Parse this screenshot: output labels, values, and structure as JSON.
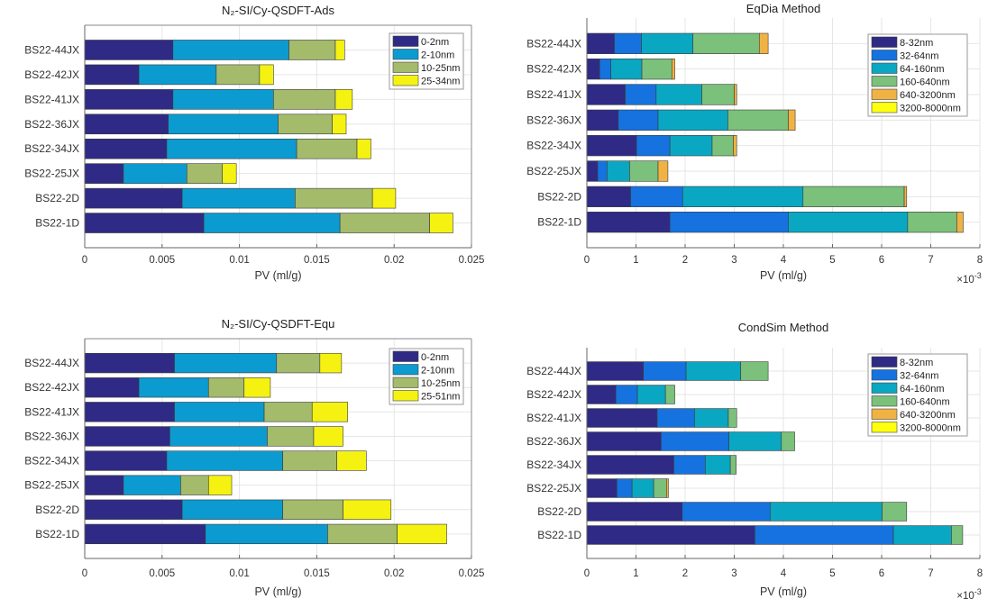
{
  "chart_data": [
    {
      "type": "bar",
      "orientation": "horizontal",
      "stacked": true,
      "title": "N₂-SI/Cy-QSDFT-Ads",
      "xlabel": "PV (ml/g)",
      "ylabel": "",
      "xlim": [
        0,
        0.025
      ],
      "xticks": [
        "0",
        "0.005",
        "0.01",
        "0.015",
        "0.02",
        "0.025"
      ],
      "xtick_values": [
        0,
        0.005,
        0.01,
        0.015,
        0.02,
        0.025
      ],
      "grid": true,
      "legend_position": "top-right",
      "categories": [
        "BS22-1D",
        "BS22-2D",
        "BS22-25JX",
        "BS22-34JX",
        "BS22-36JX",
        "BS22-41JX",
        "BS22-42JX",
        "BS22-44JX"
      ],
      "series": [
        {
          "name": "0-2nm",
          "color": "#2f2a85",
          "values": [
            0.0077,
            0.0063,
            0.0025,
            0.0053,
            0.0054,
            0.0057,
            0.0035,
            0.0057
          ]
        },
        {
          "name": "2-10nm",
          "color": "#0b9bd0",
          "values": [
            0.0088,
            0.0073,
            0.0041,
            0.0084,
            0.0071,
            0.0065,
            0.005,
            0.0075
          ]
        },
        {
          "name": "10-25nm",
          "color": "#a3bb6b",
          "values": [
            0.0058,
            0.005,
            0.0023,
            0.0039,
            0.0035,
            0.004,
            0.0028,
            0.003
          ]
        },
        {
          "name": "25-34nm",
          "color": "#f5f212",
          "values": [
            0.0015,
            0.0015,
            0.0009,
            0.0009,
            0.0009,
            0.0011,
            0.0009,
            0.0006
          ]
        }
      ]
    },
    {
      "type": "bar",
      "orientation": "horizontal",
      "stacked": true,
      "title": "EqDia Method",
      "xlabel": "PV (ml/g)",
      "ylabel": "",
      "xlim": [
        0,
        8
      ],
      "xticks": [
        "0",
        "1",
        "2",
        "3",
        "4",
        "5",
        "6",
        "7",
        "8"
      ],
      "xtick_values": [
        0,
        1,
        2,
        3,
        4,
        5,
        6,
        7,
        8
      ],
      "x_multiplier": {
        "base": "×10",
        "exp": "-3"
      },
      "grid": true,
      "legend_position": "top-right",
      "categories": [
        "BS22-1D",
        "BS22-2D",
        "BS22-25JX",
        "BS22-34JX",
        "BS22-36JX",
        "BS22-41JX",
        "BS22-42JX",
        "BS22-44JX"
      ],
      "series": [
        {
          "name": "8-32nm",
          "color": "#2f2a85",
          "values": [
            1.69,
            0.89,
            0.22,
            1.01,
            0.64,
            0.78,
            0.26,
            0.56
          ]
        },
        {
          "name": "32-64nm",
          "color": "#1572df",
          "values": [
            2.41,
            1.06,
            0.19,
            0.68,
            0.81,
            0.63,
            0.23,
            0.55
          ]
        },
        {
          "name": "64-160nm",
          "color": "#0aa7c2",
          "values": [
            2.43,
            2.45,
            0.46,
            0.86,
            1.42,
            0.93,
            0.63,
            1.05
          ]
        },
        {
          "name": "160-640nm",
          "color": "#7bc07b",
          "values": [
            1.0,
            2.06,
            0.58,
            0.43,
            1.23,
            0.66,
            0.61,
            1.35
          ]
        },
        {
          "name": "640-3200nm",
          "color": "#f0b243",
          "values": [
            0.13,
            0.05,
            0.2,
            0.07,
            0.14,
            0.05,
            0.06,
            0.18
          ]
        },
        {
          "name": "3200-8000nm",
          "color": "#ffff10",
          "values": [
            0,
            0,
            0,
            0,
            0,
            0,
            0,
            0
          ]
        }
      ]
    },
    {
      "type": "bar",
      "orientation": "horizontal",
      "stacked": true,
      "title": "N₂-SI/Cy-QSDFT-Equ",
      "xlabel": "PV (ml/g)",
      "ylabel": "",
      "xlim": [
        0,
        0.025
      ],
      "xticks": [
        "0",
        "0.005",
        "0.01",
        "0.015",
        "0.02",
        "0.025"
      ],
      "xtick_values": [
        0,
        0.005,
        0.01,
        0.015,
        0.02,
        0.025
      ],
      "grid": true,
      "legend_position": "top-right",
      "categories": [
        "BS22-1D",
        "BS22-2D",
        "BS22-25JX",
        "BS22-34JX",
        "BS22-36JX",
        "BS22-41JX",
        "BS22-42JX",
        "BS22-44JX"
      ],
      "series": [
        {
          "name": "0-2nm",
          "color": "#2f2a85",
          "values": [
            0.0078,
            0.0063,
            0.0025,
            0.0053,
            0.0055,
            0.0058,
            0.0035,
            0.0058
          ]
        },
        {
          "name": "2-10nm",
          "color": "#0b9bd0",
          "values": [
            0.0079,
            0.0065,
            0.0037,
            0.0075,
            0.0063,
            0.0058,
            0.0045,
            0.0066
          ]
        },
        {
          "name": "10-25nm",
          "color": "#a3bb6b",
          "values": [
            0.0045,
            0.0039,
            0.0018,
            0.0035,
            0.003,
            0.0031,
            0.0023,
            0.0028
          ]
        },
        {
          "name": "25-51nm",
          "color": "#f5f212",
          "values": [
            0.0032,
            0.0031,
            0.0015,
            0.0019,
            0.0019,
            0.0023,
            0.0017,
            0.0014
          ]
        }
      ]
    },
    {
      "type": "bar",
      "orientation": "horizontal",
      "stacked": true,
      "title": "CondSim Method",
      "xlabel": "PV (ml/g)",
      "ylabel": "",
      "xlim": [
        0,
        8
      ],
      "xticks": [
        "0",
        "1",
        "2",
        "3",
        "4",
        "5",
        "6",
        "7",
        "8"
      ],
      "xtick_values": [
        0,
        1,
        2,
        3,
        4,
        5,
        6,
        7,
        8
      ],
      "x_multiplier": {
        "base": "×10",
        "exp": "-3"
      },
      "grid": true,
      "legend_position": "top-right",
      "categories": [
        "BS22-1D",
        "BS22-2D",
        "BS22-25JX",
        "BS22-34JX",
        "BS22-36JX",
        "BS22-41JX",
        "BS22-42JX",
        "BS22-44JX"
      ],
      "series": [
        {
          "name": "8-32nm",
          "color": "#2f2a85",
          "values": [
            3.42,
            1.94,
            0.61,
            1.77,
            1.51,
            1.43,
            0.59,
            1.15
          ]
        },
        {
          "name": "32-64nm",
          "color": "#1572df",
          "values": [
            2.82,
            1.79,
            0.31,
            0.64,
            1.38,
            0.76,
            0.44,
            0.87
          ]
        },
        {
          "name": "64-160nm",
          "color": "#0aa7c2",
          "values": [
            1.18,
            2.28,
            0.44,
            0.51,
            1.07,
            0.69,
            0.57,
            1.11
          ]
        },
        {
          "name": "160-640nm",
          "color": "#7bc07b",
          "values": [
            0.23,
            0.5,
            0.26,
            0.12,
            0.27,
            0.17,
            0.19,
            0.56
          ]
        },
        {
          "name": "640-3200nm",
          "color": "#f0b243",
          "values": [
            0,
            0,
            0.04,
            0,
            0,
            0,
            0,
            0
          ]
        },
        {
          "name": "3200-8000nm",
          "color": "#ffff10",
          "values": [
            0,
            0,
            0,
            0,
            0,
            0,
            0,
            0
          ]
        }
      ]
    }
  ]
}
